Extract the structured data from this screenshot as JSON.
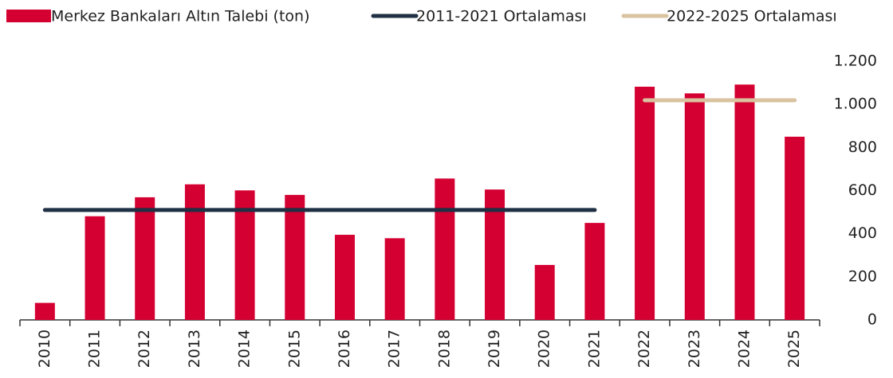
{
  "chart_data": {
    "type": "bar",
    "categories": [
      "2010",
      "2011",
      "2012",
      "2013",
      "2014",
      "2015",
      "2016",
      "2017",
      "2018",
      "2019",
      "2020",
      "2021",
      "2022",
      "2023",
      "2024",
      "2025"
    ],
    "series": [
      {
        "name": "Merkez Bankaları Altın Talebi (ton)",
        "type": "bar",
        "color": "#d50032",
        "values": [
          79,
          481,
          569,
          629,
          601,
          580,
          395,
          379,
          656,
          605,
          255,
          450,
          1082,
          1051,
          1092,
          850
        ]
      },
      {
        "name": "2011-2021 Ortalaması",
        "type": "line",
        "color": "#1f3044",
        "values": [
          510,
          510,
          510,
          510,
          510,
          510,
          510,
          510,
          510,
          510,
          510,
          510,
          null,
          null,
          null,
          null
        ]
      },
      {
        "name": "2022-2025 Ortalaması",
        "type": "line",
        "color": "#d9c3a0",
        "values": [
          null,
          null,
          null,
          null,
          null,
          null,
          null,
          null,
          null,
          null,
          null,
          null,
          1019,
          1019,
          1019,
          1019
        ]
      }
    ],
    "ylim": [
      0,
      1200
    ],
    "yticks": [
      0,
      200,
      400,
      600,
      800,
      {
        "value": 1000,
        "label": "1.000"
      },
      {
        "value": 1200,
        "label": "1.200"
      }
    ],
    "y_axis_side": "right",
    "legend": "top"
  }
}
